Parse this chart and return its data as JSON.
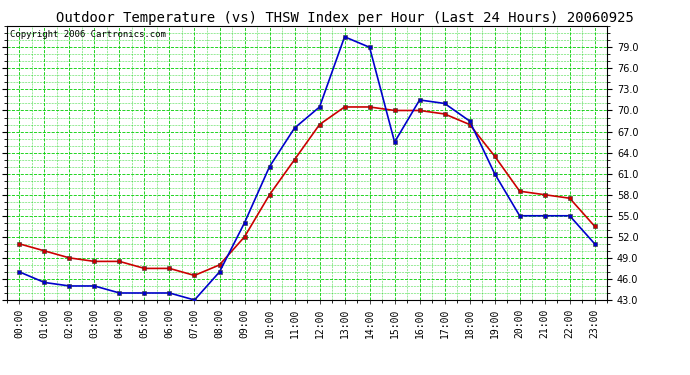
{
  "title": "Outdoor Temperature (vs) THSW Index per Hour (Last 24 Hours) 20060925",
  "copyright": "Copyright 2006 Cartronics.com",
  "hours": [
    "00:00",
    "01:00",
    "02:00",
    "03:00",
    "04:00",
    "05:00",
    "06:00",
    "07:00",
    "08:00",
    "09:00",
    "10:00",
    "11:00",
    "12:00",
    "13:00",
    "14:00",
    "15:00",
    "16:00",
    "17:00",
    "18:00",
    "19:00",
    "20:00",
    "21:00",
    "22:00",
    "23:00"
  ],
  "outdoor_temp": [
    51.0,
    50.0,
    49.0,
    48.5,
    48.5,
    47.5,
    47.5,
    46.5,
    48.0,
    52.0,
    58.0,
    63.0,
    68.0,
    70.5,
    70.5,
    70.0,
    70.0,
    69.5,
    68.0,
    63.5,
    58.5,
    58.0,
    57.5,
    53.5
  ],
  "thsw_index": [
    47.0,
    45.5,
    45.0,
    45.0,
    44.0,
    44.0,
    44.0,
    43.0,
    47.0,
    54.0,
    62.0,
    67.5,
    70.5,
    80.5,
    79.0,
    65.5,
    71.5,
    71.0,
    68.5,
    61.0,
    55.0,
    55.0,
    55.0,
    51.0
  ],
  "temp_color": "#cc0000",
  "thsw_color": "#0000cc",
  "background_color": "#ffffff",
  "plot_bg_color": "#ffffff",
  "grid_color": "#00cc00",
  "ylim": [
    43.0,
    82.0
  ],
  "yticks": [
    43.0,
    46.0,
    49.0,
    52.0,
    55.0,
    58.0,
    61.0,
    64.0,
    67.0,
    70.0,
    73.0,
    76.0,
    79.0
  ],
  "title_fontsize": 10,
  "copyright_fontsize": 6.5,
  "tick_fontsize": 7,
  "marker": "s",
  "markersize": 2.5,
  "linewidth": 1.2
}
